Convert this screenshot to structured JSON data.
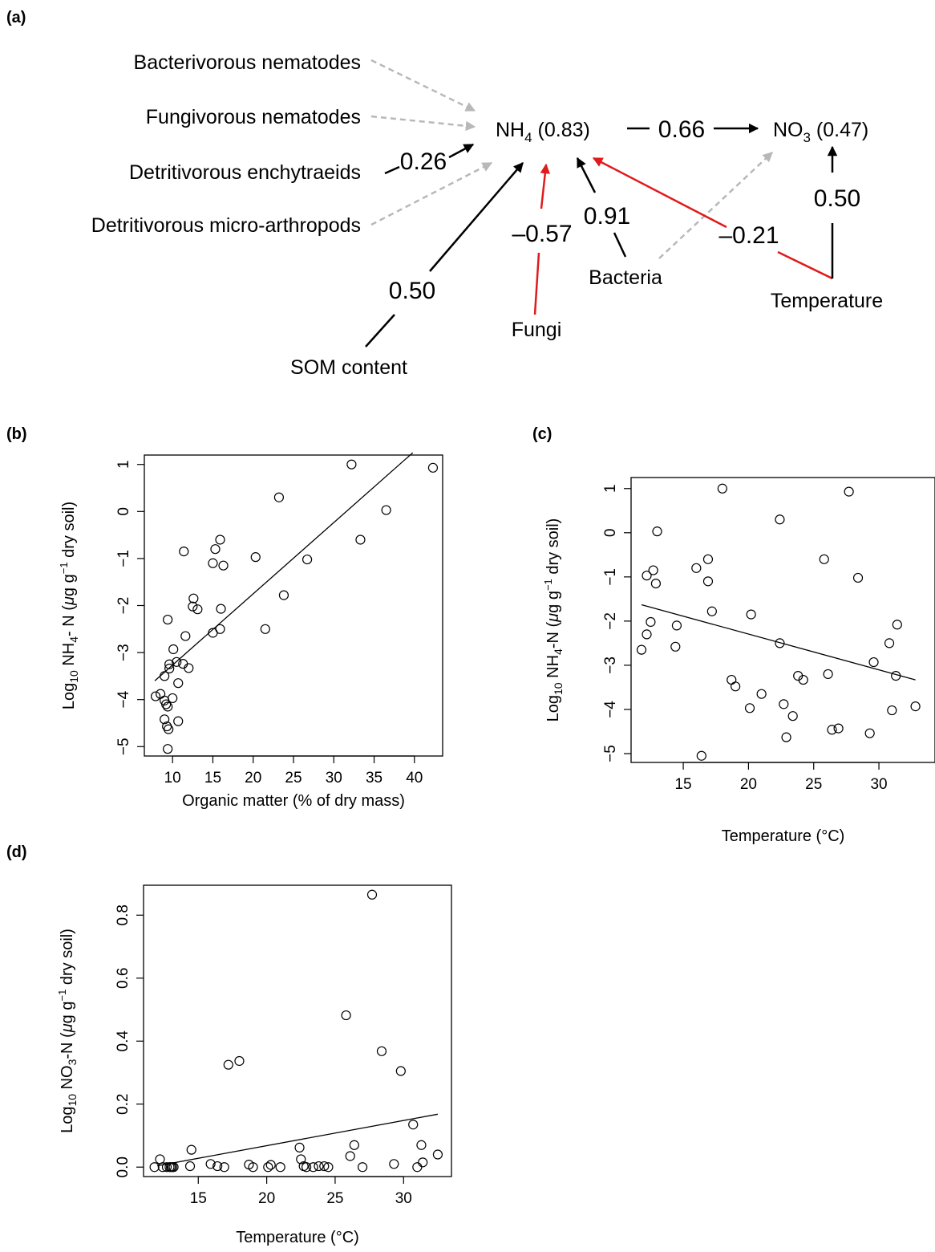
{
  "colors": {
    "positive": "#000000",
    "negative": "#e01b1b",
    "nonsignificant": "#b8b8b8"
  },
  "panel_labels": {
    "a": "(a)",
    "b": "(b)",
    "c": "(c)",
    "d": "(d)"
  },
  "diagram": {
    "nodes": {
      "bacterivorous": "Bacterivorous nematodes",
      "fungivorous": "Fungivorous nematodes",
      "enchytraeids": "Detritivorous enchytraeids",
      "microarthropods": "Detritivorous micro-arthropods",
      "nh4_main": "NH",
      "nh4_sub": "4",
      "nh4_r2": " (0.83)",
      "no3_main": "NO",
      "no3_sub": "3",
      "no3_r2": " (0.47)",
      "som": "SOM content",
      "fungi": "Fungi",
      "bacteria": "Bacteria",
      "temperature": "Temperature"
    },
    "paths": [
      {
        "from": "Bacterivorous nematodes",
        "to": "NH4",
        "type": "nonsignificant"
      },
      {
        "from": "Fungivorous nematodes",
        "to": "NH4",
        "type": "nonsignificant"
      },
      {
        "from": "Detritivorous enchytraeids",
        "to": "NH4",
        "coef": "0.26",
        "type": "positive"
      },
      {
        "from": "Detritivorous micro-arthropods",
        "to": "NH4",
        "type": "nonsignificant"
      },
      {
        "from": "SOM content",
        "to": "NH4",
        "coef": "0.50",
        "type": "positive"
      },
      {
        "from": "Fungi",
        "to": "NH4",
        "coef": "–0.57",
        "type": "negative"
      },
      {
        "from": "Bacteria",
        "to": "NH4",
        "coef": "0.91",
        "type": "positive"
      },
      {
        "from": "Bacteria",
        "to": "NO3",
        "type": "nonsignificant"
      },
      {
        "from": "Temperature",
        "to": "NH4",
        "coef": "–0.21",
        "type": "negative"
      },
      {
        "from": "Temperature",
        "to": "NO3",
        "coef": "0.50",
        "type": "positive"
      },
      {
        "from": "NH4",
        "to": "NO3",
        "coef": "0.66",
        "type": "positive"
      }
    ]
  },
  "chart_data": [
    {
      "panel": "(b)",
      "type": "scatter",
      "xlabel": "Organic matter (% of dry mass)",
      "ylabel_prefix": "Log",
      "ylabel_base": "10",
      "ylabel_mid": " NH",
      "ylabel_sub": "4",
      "ylabel_unit_pre": "- N (",
      "ylabel_mu": "μ",
      "ylabel_unit_mid": "g g",
      "ylabel_sup": "−1",
      "ylabel_unit_post": " dry soil)",
      "xlim": [
        6.5,
        43.5
      ],
      "ylim": [
        -5.2,
        1.2
      ],
      "xticks": [
        10,
        15,
        20,
        25,
        30,
        35,
        40
      ],
      "yticks": [
        -5,
        -4,
        -3,
        -2,
        -1,
        0,
        1
      ],
      "fit_line": {
        "x": [
          7.8,
          39.8
        ],
        "y": [
          -3.6,
          1.25
        ]
      },
      "points": [
        {
          "x": 32.2,
          "y": 1.0
        },
        {
          "x": 42.3,
          "y": 0.93
        },
        {
          "x": 23.2,
          "y": 0.3
        },
        {
          "x": 36.5,
          "y": 0.03
        },
        {
          "x": 15.9,
          "y": -0.6
        },
        {
          "x": 33.3,
          "y": -0.6
        },
        {
          "x": 11.4,
          "y": -0.85
        },
        {
          "x": 15.3,
          "y": -0.8
        },
        {
          "x": 20.3,
          "y": -0.97
        },
        {
          "x": 26.7,
          "y": -1.02
        },
        {
          "x": 15.0,
          "y": -1.1
        },
        {
          "x": 16.3,
          "y": -1.15
        },
        {
          "x": 23.8,
          "y": -1.78
        },
        {
          "x": 12.6,
          "y": -1.85
        },
        {
          "x": 12.5,
          "y": -2.02
        },
        {
          "x": 13.1,
          "y": -2.08
        },
        {
          "x": 16.0,
          "y": -2.07
        },
        {
          "x": 9.4,
          "y": -2.3
        },
        {
          "x": 21.5,
          "y": -2.5
        },
        {
          "x": 15.9,
          "y": -2.5
        },
        {
          "x": 15.0,
          "y": -2.58
        },
        {
          "x": 11.6,
          "y": -2.65
        },
        {
          "x": 10.1,
          "y": -2.93
        },
        {
          "x": 10.5,
          "y": -3.2
        },
        {
          "x": 11.3,
          "y": -3.24
        },
        {
          "x": 9.6,
          "y": -3.25
        },
        {
          "x": 9.6,
          "y": -3.34
        },
        {
          "x": 12.0,
          "y": -3.33
        },
        {
          "x": 9.0,
          "y": -3.5
        },
        {
          "x": 10.7,
          "y": -3.65
        },
        {
          "x": 8.5,
          "y": -3.88
        },
        {
          "x": 7.9,
          "y": -3.93
        },
        {
          "x": 10.0,
          "y": -3.97
        },
        {
          "x": 9.0,
          "y": -4.02
        },
        {
          "x": 9.4,
          "y": -4.15
        },
        {
          "x": 9.2,
          "y": -4.1
        },
        {
          "x": 9.0,
          "y": -4.42
        },
        {
          "x": 10.7,
          "y": -4.46
        },
        {
          "x": 9.3,
          "y": -4.57
        },
        {
          "x": 9.5,
          "y": -4.63
        },
        {
          "x": 9.4,
          "y": -5.05
        }
      ]
    },
    {
      "panel": "(c)",
      "type": "scatter",
      "xlabel": "Temperature (°C)",
      "ylabel_prefix": "Log",
      "ylabel_base": "10",
      "ylabel_mid": " NH",
      "ylabel_sub": "4",
      "ylabel_unit_pre": "-N (",
      "ylabel_mu": "μ",
      "ylabel_unit_mid": "g g",
      "ylabel_sup": "−1",
      "ylabel_unit_post": " dry soil)",
      "xlim": [
        11.0,
        34.3
      ],
      "ylim": [
        -5.2,
        1.25
      ],
      "xticks": [
        15,
        20,
        25,
        30
      ],
      "yticks": [
        -5,
        -4,
        -3,
        -2,
        -1,
        0,
        1
      ],
      "fit_line": {
        "x": [
          11.8,
          32.8
        ],
        "y": [
          -1.63,
          -3.33
        ]
      },
      "points": [
        {
          "x": 18.0,
          "y": 1.0
        },
        {
          "x": 27.7,
          "y": 0.93
        },
        {
          "x": 22.4,
          "y": 0.3
        },
        {
          "x": 13.0,
          "y": 0.03
        },
        {
          "x": 16.9,
          "y": -0.6
        },
        {
          "x": 25.8,
          "y": -0.6
        },
        {
          "x": 16.0,
          "y": -0.8
        },
        {
          "x": 12.7,
          "y": -0.85
        },
        {
          "x": 12.2,
          "y": -0.97
        },
        {
          "x": 28.4,
          "y": -1.02
        },
        {
          "x": 16.9,
          "y": -1.1
        },
        {
          "x": 12.9,
          "y": -1.15
        },
        {
          "x": 17.2,
          "y": -1.78
        },
        {
          "x": 20.2,
          "y": -1.85
        },
        {
          "x": 12.5,
          "y": -2.02
        },
        {
          "x": 31.4,
          "y": -2.08
        },
        {
          "x": 14.5,
          "y": -2.1
        },
        {
          "x": 12.2,
          "y": -2.3
        },
        {
          "x": 22.4,
          "y": -2.5
        },
        {
          "x": 30.8,
          "y": -2.5
        },
        {
          "x": 14.4,
          "y": -2.58
        },
        {
          "x": 11.8,
          "y": -2.65
        },
        {
          "x": 29.6,
          "y": -2.93
        },
        {
          "x": 26.1,
          "y": -3.2
        },
        {
          "x": 23.8,
          "y": -3.24
        },
        {
          "x": 31.3,
          "y": -3.24
        },
        {
          "x": 24.2,
          "y": -3.33
        },
        {
          "x": 18.7,
          "y": -3.33
        },
        {
          "x": 19.0,
          "y": -3.48
        },
        {
          "x": 21.0,
          "y": -3.65
        },
        {
          "x": 22.7,
          "y": -3.88
        },
        {
          "x": 32.8,
          "y": -3.93
        },
        {
          "x": 20.1,
          "y": -3.97
        },
        {
          "x": 31.0,
          "y": -4.02
        },
        {
          "x": 23.4,
          "y": -4.15
        },
        {
          "x": 26.9,
          "y": -4.43
        },
        {
          "x": 26.4,
          "y": -4.46
        },
        {
          "x": 29.3,
          "y": -4.54
        },
        {
          "x": 22.9,
          "y": -4.63
        },
        {
          "x": 16.4,
          "y": -5.05
        }
      ]
    },
    {
      "panel": "(d)",
      "type": "scatter",
      "xlabel": "Temperature (°C)",
      "ylabel_prefix": "Log",
      "ylabel_base": "10",
      "ylabel_mid": " NO",
      "ylabel_sub": "3",
      "ylabel_unit_pre": "-N (",
      "ylabel_mu": "μ",
      "ylabel_unit_mid": "g g",
      "ylabel_sup": "−1",
      "ylabel_unit_post": " dry soil)",
      "xlim": [
        11.0,
        33.5
      ],
      "ylim": [
        -0.03,
        0.895
      ],
      "xticks": [
        15,
        20,
        25,
        30
      ],
      "yticks": [
        0.0,
        0.2,
        0.4,
        0.6,
        0.8
      ],
      "ytick_labels": [
        "0.0",
        "0.2",
        "0.4",
        "0.6",
        "0.8"
      ],
      "fit_line": {
        "x": [
          12.0,
          32.5
        ],
        "y": [
          0.004,
          0.168
        ]
      },
      "points": [
        {
          "x": 27.7,
          "y": 0.865
        },
        {
          "x": 25.8,
          "y": 0.482
        },
        {
          "x": 28.4,
          "y": 0.368
        },
        {
          "x": 18.0,
          "y": 0.337
        },
        {
          "x": 17.2,
          "y": 0.325
        },
        {
          "x": 29.8,
          "y": 0.305
        },
        {
          "x": 30.7,
          "y": 0.135
        },
        {
          "x": 26.4,
          "y": 0.07
        },
        {
          "x": 31.3,
          "y": 0.07
        },
        {
          "x": 22.4,
          "y": 0.062
        },
        {
          "x": 14.5,
          "y": 0.055
        },
        {
          "x": 32.5,
          "y": 0.04
        },
        {
          "x": 26.1,
          "y": 0.035
        },
        {
          "x": 12.2,
          "y": 0.025
        },
        {
          "x": 22.5,
          "y": 0.025
        },
        {
          "x": 31.4,
          "y": 0.015
        },
        {
          "x": 29.3,
          "y": 0.01
        },
        {
          "x": 15.9,
          "y": 0.01
        },
        {
          "x": 18.7,
          "y": 0.008
        },
        {
          "x": 20.3,
          "y": 0.007
        },
        {
          "x": 11.8,
          "y": 0.0
        },
        {
          "x": 12.4,
          "y": 0.0
        },
        {
          "x": 12.7,
          "y": 0.0
        },
        {
          "x": 13.0,
          "y": 0.0
        },
        {
          "x": 13.2,
          "y": 0.0
        },
        {
          "x": 12.9,
          "y": 0.0
        },
        {
          "x": 13.1,
          "y": 0.0
        },
        {
          "x": 14.4,
          "y": 0.003
        },
        {
          "x": 16.4,
          "y": 0.003
        },
        {
          "x": 16.9,
          "y": 0.0
        },
        {
          "x": 19.0,
          "y": 0.0
        },
        {
          "x": 20.1,
          "y": 0.0
        },
        {
          "x": 21.0,
          "y": 0.0
        },
        {
          "x": 22.7,
          "y": 0.003
        },
        {
          "x": 22.9,
          "y": 0.0
        },
        {
          "x": 23.4,
          "y": 0.0
        },
        {
          "x": 23.8,
          "y": 0.003
        },
        {
          "x": 24.2,
          "y": 0.003
        },
        {
          "x": 24.5,
          "y": 0.0
        },
        {
          "x": 27.0,
          "y": 0.0
        },
        {
          "x": 31.0,
          "y": 0.0
        }
      ]
    }
  ]
}
